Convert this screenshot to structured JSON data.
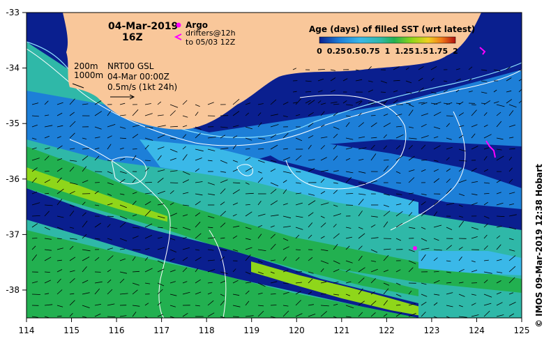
{
  "map": {
    "date_line1": "04-Mar-2019",
    "date_line2": "16Z",
    "argo_label": "Argo",
    "drifters_label": "drifters@12h",
    "drifters_to": "to 05/03 12Z",
    "contour_200": "200m",
    "contour_1000": "1000m",
    "nrt_line1": "NRT00 GSL",
    "nrt_line2": "04-Mar 00:00Z",
    "nrt_line3": "0.5m/s (1kt 24h)",
    "colorbar_title": "Age (days) of filled SST (wrt latest)",
    "colorbar_ticks": [
      "0",
      "0.25",
      "0.5",
      "0.75",
      "1",
      "1.25",
      "1.5",
      "1.75",
      "2"
    ],
    "x_ticks": [
      "114",
      "115",
      "116",
      "117",
      "118",
      "119",
      "120",
      "121",
      "122",
      "123",
      "124",
      "125"
    ],
    "y_ticks": [
      "-33",
      "-34",
      "-35",
      "-36",
      "-37",
      "-38"
    ],
    "credit": "© IMOS 09-Mar-2019 12:38 Hobart",
    "colors": {
      "land": "#f9c79a",
      "age_0": "#0a1f8f",
      "age_low": "#1a3fbf",
      "age_mid": "#1d7fd8",
      "age_cyan": "#3ab8e8",
      "age_teal": "#2fb8a8",
      "age_green": "#22b050",
      "age_lime": "#8fd61a",
      "argo": "#ff00ff"
    }
  }
}
